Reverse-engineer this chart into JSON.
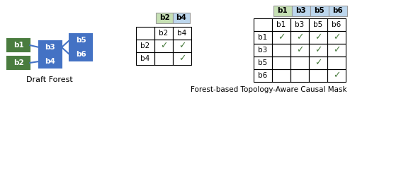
{
  "green_color": "#4a7c3f",
  "blue_color": "#4472c4",
  "light_green_bg": "#c6e0b4",
  "light_blue_bg": "#bdd7ee",
  "check_color": "#4a7c3f",
  "draft_forest_label": "Draft Forest",
  "mask_label": "Forest-based Topology-Aware Causal Mask",
  "small_table_checks": [
    [
      1,
      1
    ],
    [
      0,
      1
    ]
  ],
  "big_table_checks": [
    [
      1,
      1,
      1,
      1
    ],
    [
      0,
      1,
      1,
      1
    ],
    [
      0,
      0,
      1,
      0
    ],
    [
      0,
      0,
      0,
      1
    ]
  ],
  "small_hdr_colors": [
    "#c6e0b4",
    "#bdd7ee"
  ],
  "big_hdr_colors": [
    "#c6e0b4",
    "#bdd7ee",
    "#bdd7ee",
    "#bdd7ee"
  ]
}
